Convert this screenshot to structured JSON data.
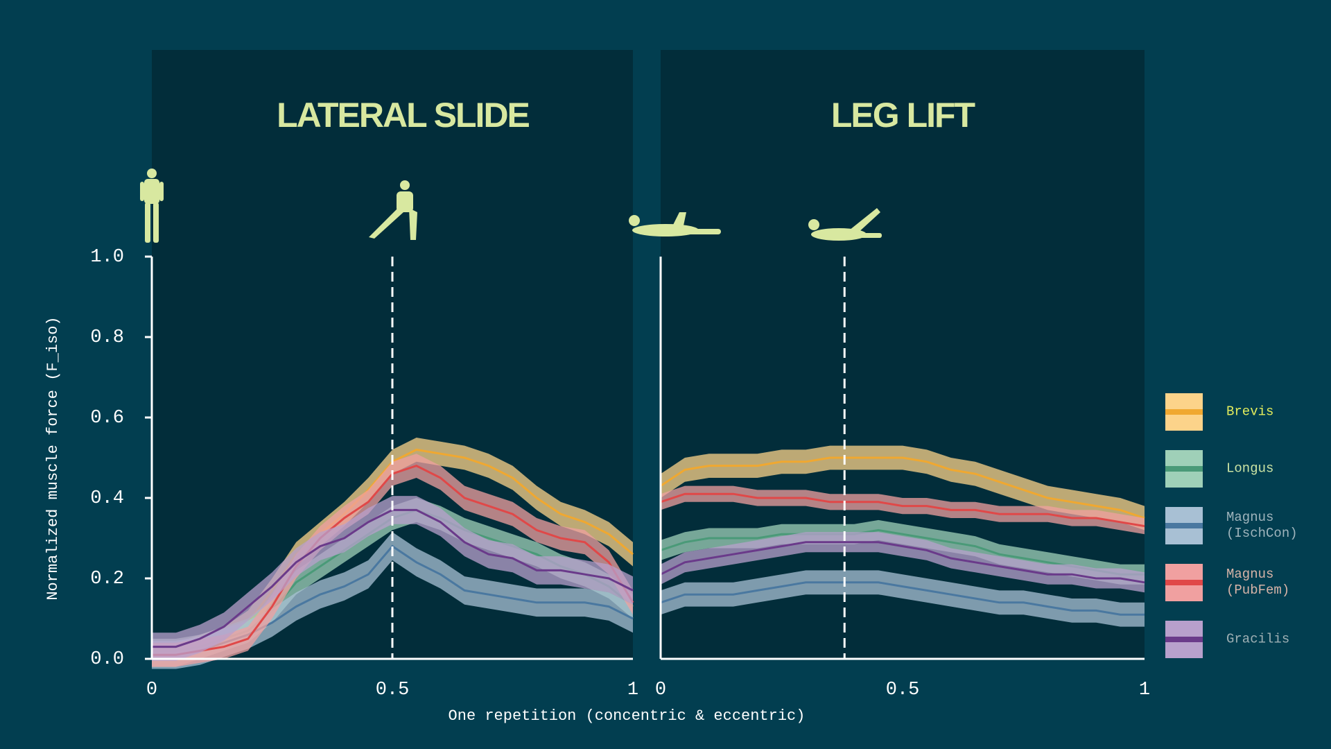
{
  "chart_data": [
    {
      "type": "line",
      "title": "LATERAL SLIDE",
      "xlabel": "One repetition (concentric & eccentric)",
      "ylabel": "Normalized muscle force (F_iso)",
      "x": [
        0,
        0.05,
        0.1,
        0.15,
        0.2,
        0.25,
        0.3,
        0.35,
        0.4,
        0.45,
        0.5,
        0.55,
        0.6,
        0.65,
        0.7,
        0.75,
        0.8,
        0.85,
        0.9,
        0.95,
        1
      ],
      "xlim": [
        0,
        1
      ],
      "xticks": [
        0,
        0.5,
        1
      ],
      "ylim": [
        0,
        1
      ],
      "yticks": [
        {
          "value": 0,
          "label": "0.0"
        },
        0.2,
        0.4,
        0.6,
        0.8,
        {
          "value": 1,
          "label": "1.0"
        }
      ],
      "marker_x": 0.5,
      "series": [
        {
          "name": "Brevis",
          "color": "#f0a830",
          "band_color": "#fcd38a",
          "label_color": "#e3ec5c",
          "sd": 0.03,
          "values": [
            0.01,
            0.01,
            0.03,
            0.05,
            0.09,
            0.17,
            0.26,
            0.31,
            0.36,
            0.42,
            0.49,
            0.52,
            0.51,
            0.5,
            0.48,
            0.45,
            0.4,
            0.36,
            0.34,
            0.31,
            0.26
          ]
        },
        {
          "name": "Longus",
          "color": "#4a9a78",
          "band_color": "#9fd0b8",
          "label_color": "#cce4a4",
          "sd": 0.03,
          "values": [
            0.02,
            0.02,
            0.03,
            0.05,
            0.07,
            0.12,
            0.19,
            0.23,
            0.27,
            0.31,
            0.35,
            0.37,
            0.35,
            0.32,
            0.3,
            0.28,
            0.26,
            0.23,
            0.21,
            0.18,
            0.13
          ]
        },
        {
          "name": "Magnus (IschCon)",
          "color": "#4a78a0",
          "band_color": "#a8c0d4",
          "label_color": "#9fb4bc",
          "sd": 0.035,
          "values": [
            0.01,
            0.01,
            0.02,
            0.04,
            0.06,
            0.09,
            0.13,
            0.16,
            0.18,
            0.21,
            0.28,
            0.24,
            0.21,
            0.17,
            0.16,
            0.15,
            0.14,
            0.14,
            0.14,
            0.13,
            0.1
          ]
        },
        {
          "name": "Magnus (PubFem)",
          "color": "#e04848",
          "band_color": "#f0a0a0",
          "label_color": "#d8b4a8",
          "sd": 0.03,
          "values": [
            0.01,
            0.01,
            0.02,
            0.03,
            0.05,
            0.13,
            0.23,
            0.3,
            0.35,
            0.39,
            0.46,
            0.48,
            0.45,
            0.4,
            0.38,
            0.36,
            0.32,
            0.3,
            0.29,
            0.24,
            0.14
          ]
        },
        {
          "name": "Gracilis",
          "color": "#6a3a8a",
          "band_color": "#b8a0cc",
          "label_color": "#9fb0b4",
          "sd": 0.035,
          "values": [
            0.03,
            0.03,
            0.05,
            0.08,
            0.13,
            0.18,
            0.24,
            0.28,
            0.3,
            0.34,
            0.37,
            0.37,
            0.34,
            0.29,
            0.26,
            0.25,
            0.22,
            0.22,
            0.21,
            0.2,
            0.17
          ]
        }
      ]
    },
    {
      "type": "line",
      "title": "LEG LIFT",
      "x": [
        0,
        0.05,
        0.1,
        0.15,
        0.2,
        0.25,
        0.3,
        0.35,
        0.4,
        0.45,
        0.5,
        0.55,
        0.6,
        0.65,
        0.7,
        0.75,
        0.8,
        0.85,
        0.9,
        0.95,
        1
      ],
      "xlim": [
        0,
        1
      ],
      "xticks": [
        0,
        0.5,
        1
      ],
      "ylim": [
        0,
        1
      ],
      "marker_x": 0.38,
      "series": [
        {
          "name": "Brevis",
          "color": "#f0a830",
          "band_color": "#fcd38a",
          "sd": 0.03,
          "values": [
            0.43,
            0.47,
            0.48,
            0.48,
            0.48,
            0.49,
            0.49,
            0.5,
            0.5,
            0.5,
            0.5,
            0.49,
            0.47,
            0.46,
            0.44,
            0.42,
            0.4,
            0.39,
            0.38,
            0.37,
            0.35
          ]
        },
        {
          "name": "Longus",
          "color": "#4a9a78",
          "band_color": "#9fd0b8",
          "sd": 0.025,
          "values": [
            0.27,
            0.29,
            0.3,
            0.3,
            0.3,
            0.31,
            0.31,
            0.31,
            0.31,
            0.32,
            0.31,
            0.3,
            0.29,
            0.28,
            0.26,
            0.25,
            0.24,
            0.23,
            0.22,
            0.21,
            0.21
          ]
        },
        {
          "name": "Magnus (IschCon)",
          "color": "#4a78a0",
          "band_color": "#a8c0d4",
          "sd": 0.03,
          "values": [
            0.14,
            0.16,
            0.16,
            0.16,
            0.17,
            0.18,
            0.19,
            0.19,
            0.19,
            0.19,
            0.18,
            0.17,
            0.16,
            0.15,
            0.14,
            0.14,
            0.13,
            0.12,
            0.12,
            0.11,
            0.11
          ]
        },
        {
          "name": "Magnus (PubFem)",
          "color": "#e04848",
          "band_color": "#f0a0a0",
          "sd": 0.02,
          "values": [
            0.39,
            0.41,
            0.41,
            0.41,
            0.4,
            0.4,
            0.4,
            0.39,
            0.39,
            0.39,
            0.38,
            0.38,
            0.37,
            0.37,
            0.36,
            0.36,
            0.36,
            0.35,
            0.35,
            0.34,
            0.33
          ]
        },
        {
          "name": "Gracilis",
          "color": "#6a3a8a",
          "band_color": "#b8a0cc",
          "sd": 0.025,
          "values": [
            0.21,
            0.24,
            0.25,
            0.26,
            0.27,
            0.28,
            0.29,
            0.29,
            0.29,
            0.29,
            0.28,
            0.27,
            0.25,
            0.24,
            0.23,
            0.22,
            0.21,
            0.21,
            0.2,
            0.2,
            0.19
          ]
        }
      ]
    }
  ]
}
